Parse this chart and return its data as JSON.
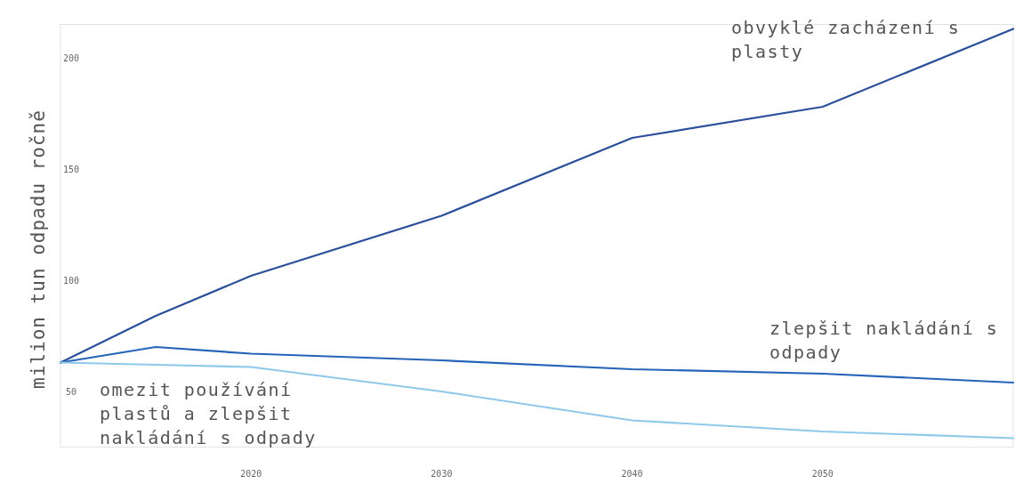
{
  "chart_data": {
    "type": "line",
    "ylabel": "milion tun odpadu ročně",
    "x": [
      2010,
      2015,
      2020,
      2030,
      2040,
      2050,
      2060
    ],
    "series": [
      {
        "name": "obvyklé zacházení s plasty",
        "color": "#2b4f9a",
        "values": [
          63,
          84,
          102,
          129,
          164,
          178,
          213
        ]
      },
      {
        "name": "zlepšit nakládání s odpady",
        "color": "#2563b8",
        "values": [
          63,
          70,
          67,
          64,
          60,
          58,
          54
        ]
      },
      {
        "name": "omezit používání plastů a zlepšit nakládání s odpady",
        "color": "#8ec9ea",
        "values": [
          63,
          62,
          61,
          50,
          37,
          32,
          29
        ]
      }
    ],
    "xlim": [
      2010,
      2060
    ],
    "ylim": [
      25,
      215
    ],
    "xticks": [
      2020,
      2030,
      2040,
      2050
    ],
    "yticks": [
      50,
      100,
      150,
      200
    ],
    "grid": false,
    "legend": false,
    "marker": "none",
    "line_style": "solid"
  }
}
